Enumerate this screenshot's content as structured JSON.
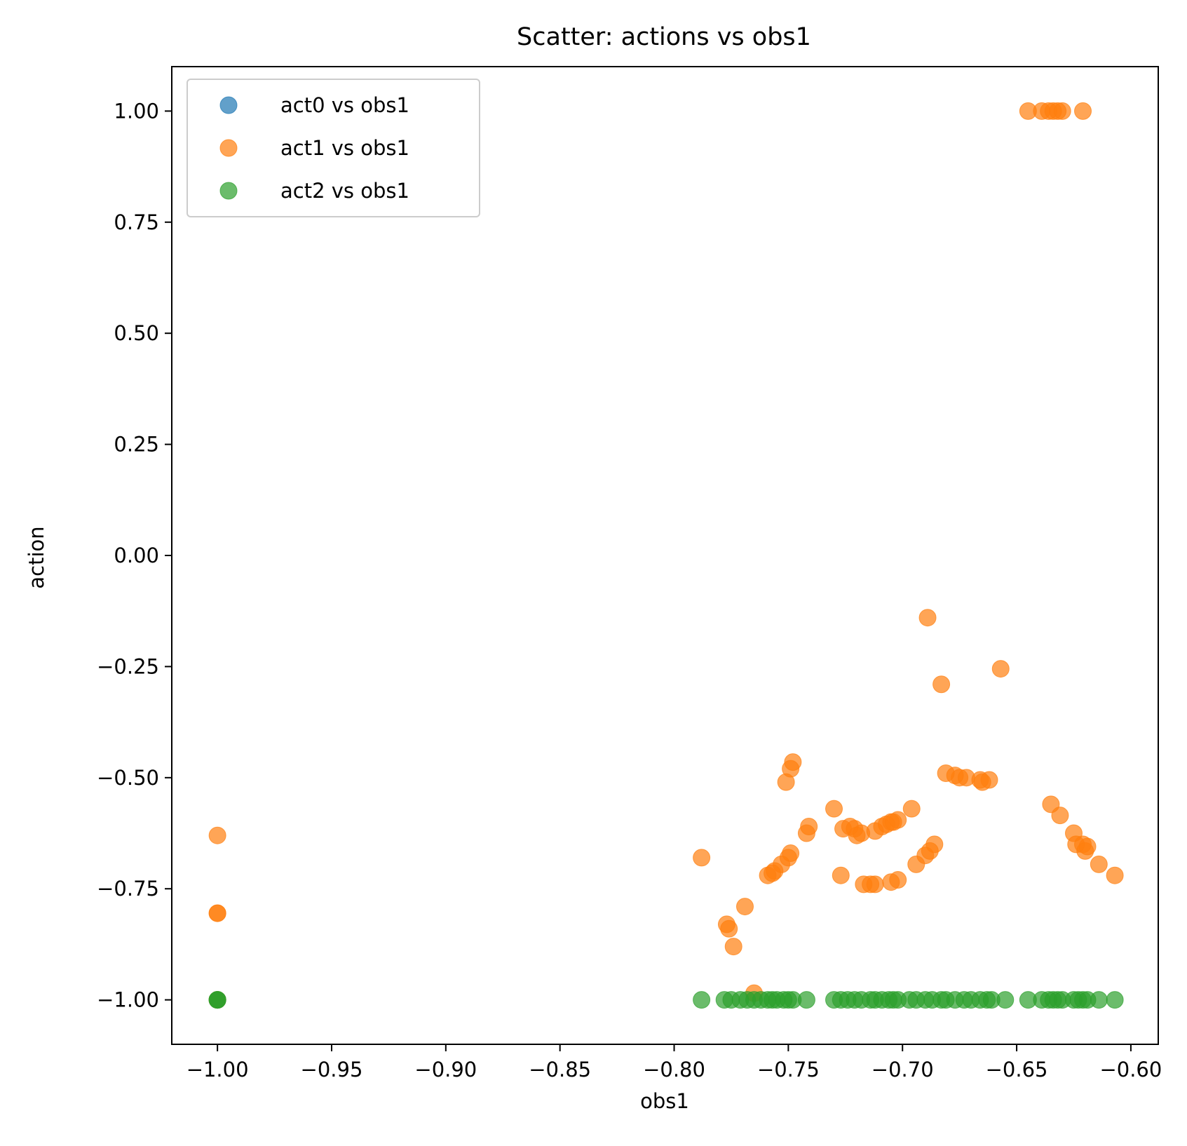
{
  "chart_data": {
    "type": "scatter",
    "title": "Scatter: actions vs obs1",
    "xlabel": "obs1",
    "ylabel": "action",
    "xlim": [
      -1.02,
      -0.588
    ],
    "ylim": [
      -1.1,
      1.1
    ],
    "xticks": [
      -1.0,
      -0.95,
      -0.9,
      -0.85,
      -0.8,
      -0.75,
      -0.7,
      -0.65,
      -0.6
    ],
    "xtick_labels": [
      "−1.00",
      "−0.95",
      "−0.90",
      "−0.85",
      "−0.80",
      "−0.75",
      "−0.70",
      "−0.65",
      "−0.60"
    ],
    "yticks": [
      1.0,
      0.75,
      0.5,
      0.25,
      0.0,
      -0.25,
      -0.5,
      -0.75,
      -1.0
    ],
    "ytick_labels": [
      "1.00",
      "0.75",
      "0.50",
      "0.25",
      "0.00",
      "−0.25",
      "−0.50",
      "−0.75",
      "−1.00"
    ],
    "grid": false,
    "legend_position": "upper-left",
    "marker_alpha": 0.7,
    "series": [
      {
        "name": "act0 vs obs1",
        "color": "#1f77b4",
        "points": []
      },
      {
        "name": "act1 vs obs1",
        "color": "#ff7f0e",
        "points": [
          [
            -1.0,
            -0.63
          ],
          [
            -1.0,
            -0.805
          ],
          [
            -1.0,
            -0.805
          ],
          [
            -1.0,
            -1.0
          ],
          [
            -1.0,
            -1.0
          ],
          [
            -0.788,
            -0.68
          ],
          [
            -0.777,
            -0.83
          ],
          [
            -0.776,
            -0.84
          ],
          [
            -0.774,
            -0.88
          ],
          [
            -0.769,
            -0.79
          ],
          [
            -0.765,
            -0.985
          ],
          [
            -0.759,
            -0.72
          ],
          [
            -0.757,
            -0.715
          ],
          [
            -0.756,
            -0.71
          ],
          [
            -0.753,
            -0.695
          ],
          [
            -0.751,
            -0.51
          ],
          [
            -0.75,
            -0.68
          ],
          [
            -0.749,
            -0.67
          ],
          [
            -0.749,
            -0.48
          ],
          [
            -0.748,
            -0.465
          ],
          [
            -0.742,
            -0.625
          ],
          [
            -0.741,
            -0.61
          ],
          [
            -0.73,
            -0.57
          ],
          [
            -0.727,
            -0.72
          ],
          [
            -0.726,
            -0.615
          ],
          [
            -0.723,
            -0.61
          ],
          [
            -0.721,
            -0.615
          ],
          [
            -0.72,
            -0.63
          ],
          [
            -0.718,
            -0.625
          ],
          [
            -0.717,
            -0.74
          ],
          [
            -0.714,
            -0.74
          ],
          [
            -0.712,
            -0.74
          ],
          [
            -0.712,
            -0.62
          ],
          [
            -0.709,
            -0.61
          ],
          [
            -0.707,
            -0.605
          ],
          [
            -0.705,
            -0.6
          ],
          [
            -0.705,
            -0.735
          ],
          [
            -0.704,
            -0.6
          ],
          [
            -0.702,
            -0.595
          ],
          [
            -0.702,
            -0.73
          ],
          [
            -0.696,
            -0.57
          ],
          [
            -0.694,
            -0.695
          ],
          [
            -0.69,
            -0.675
          ],
          [
            -0.689,
            -0.14
          ],
          [
            -0.688,
            -0.665
          ],
          [
            -0.686,
            -0.65
          ],
          [
            -0.683,
            -0.29
          ],
          [
            -0.681,
            -0.49
          ],
          [
            -0.677,
            -0.495
          ],
          [
            -0.675,
            -0.5
          ],
          [
            -0.672,
            -0.5
          ],
          [
            -0.666,
            -0.505
          ],
          [
            -0.665,
            -0.51
          ],
          [
            -0.662,
            -0.505
          ],
          [
            -0.657,
            -0.255
          ],
          [
            -0.645,
            1.0
          ],
          [
            -0.639,
            1.0
          ],
          [
            -0.636,
            1.0
          ],
          [
            -0.634,
            1.0
          ],
          [
            -0.632,
            1.0
          ],
          [
            -0.63,
            1.0
          ],
          [
            -0.621,
            1.0
          ],
          [
            -0.635,
            -0.56
          ],
          [
            -0.631,
            -0.585
          ],
          [
            -0.625,
            -0.625
          ],
          [
            -0.624,
            -0.65
          ],
          [
            -0.621,
            -0.65
          ],
          [
            -0.62,
            -0.665
          ],
          [
            -0.619,
            -0.655
          ],
          [
            -0.614,
            -0.695
          ],
          [
            -0.607,
            -0.72
          ]
        ]
      },
      {
        "name": "act2 vs obs1",
        "color": "#2ca02c",
        "points": [
          [
            -1.0,
            -1.0
          ],
          [
            -1.0,
            -1.0
          ],
          [
            -1.0,
            -1.0
          ],
          [
            -0.788,
            -1.0
          ],
          [
            -0.778,
            -1.0
          ],
          [
            -0.775,
            -1.0
          ],
          [
            -0.771,
            -1.0
          ],
          [
            -0.768,
            -1.0
          ],
          [
            -0.765,
            -1.0
          ],
          [
            -0.762,
            -1.0
          ],
          [
            -0.759,
            -1.0
          ],
          [
            -0.757,
            -1.0
          ],
          [
            -0.755,
            -1.0
          ],
          [
            -0.752,
            -1.0
          ],
          [
            -0.75,
            -1.0
          ],
          [
            -0.748,
            -1.0
          ],
          [
            -0.742,
            -1.0
          ],
          [
            -0.73,
            -1.0
          ],
          [
            -0.727,
            -1.0
          ],
          [
            -0.724,
            -1.0
          ],
          [
            -0.721,
            -1.0
          ],
          [
            -0.718,
            -1.0
          ],
          [
            -0.714,
            -1.0
          ],
          [
            -0.712,
            -1.0
          ],
          [
            -0.709,
            -1.0
          ],
          [
            -0.706,
            -1.0
          ],
          [
            -0.704,
            -1.0
          ],
          [
            -0.702,
            -1.0
          ],
          [
            -0.697,
            -1.0
          ],
          [
            -0.694,
            -1.0
          ],
          [
            -0.69,
            -1.0
          ],
          [
            -0.687,
            -1.0
          ],
          [
            -0.683,
            -1.0
          ],
          [
            -0.681,
            -1.0
          ],
          [
            -0.677,
            -1.0
          ],
          [
            -0.673,
            -1.0
          ],
          [
            -0.67,
            -1.0
          ],
          [
            -0.666,
            -1.0
          ],
          [
            -0.663,
            -1.0
          ],
          [
            -0.661,
            -1.0
          ],
          [
            -0.655,
            -1.0
          ],
          [
            -0.645,
            -1.0
          ],
          [
            -0.639,
            -1.0
          ],
          [
            -0.636,
            -1.0
          ],
          [
            -0.634,
            -1.0
          ],
          [
            -0.632,
            -1.0
          ],
          [
            -0.63,
            -1.0
          ],
          [
            -0.625,
            -1.0
          ],
          [
            -0.623,
            -1.0
          ],
          [
            -0.621,
            -1.0
          ],
          [
            -0.619,
            -1.0
          ],
          [
            -0.614,
            -1.0
          ],
          [
            -0.607,
            -1.0
          ]
        ]
      }
    ]
  }
}
